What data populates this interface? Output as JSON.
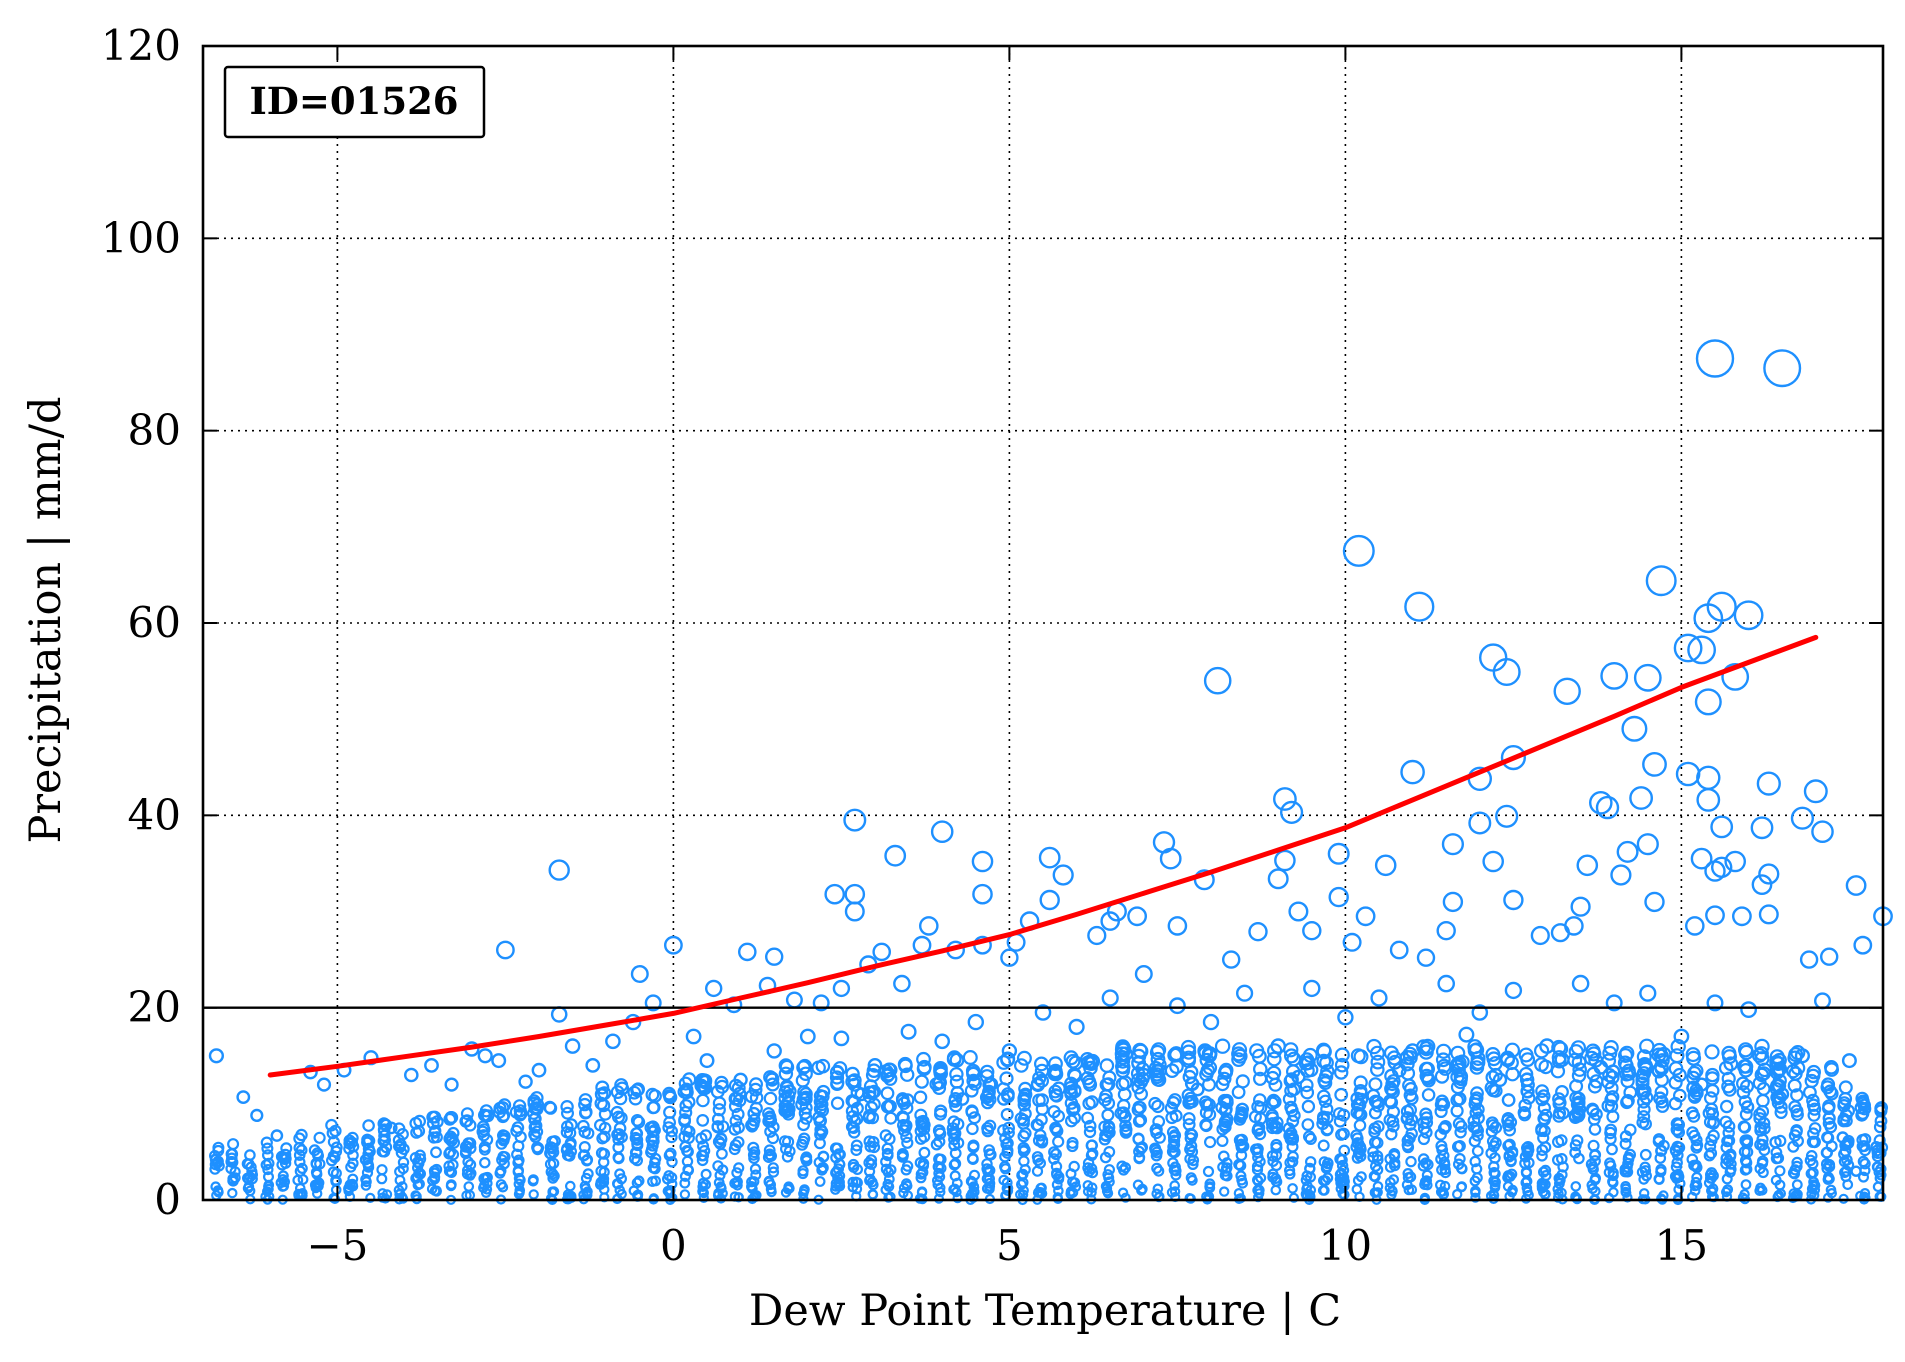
{
  "chart_data": {
    "type": "scatter",
    "title": "",
    "xlabel": "Dew Point Temperature | C",
    "ylabel": "Precipitation | mm/d",
    "xlim": [
      -7,
      18
    ],
    "ylim": [
      0,
      120
    ],
    "xticks": [
      -5,
      0,
      5,
      10,
      15
    ],
    "xtick_labels": [
      "−5",
      "0",
      "5",
      "10",
      "15"
    ],
    "yticks": [
      0,
      20,
      40,
      60,
      80,
      100,
      120
    ],
    "ytick_labels": [
      "0",
      "20",
      "40",
      "60",
      "80",
      "100",
      "120"
    ],
    "grid": true,
    "annotation": "ID=01526",
    "threshold_line": {
      "y": 20
    },
    "colors": {
      "points": "#1e90ff",
      "fit": "#ff0000",
      "threshold": "#000000"
    },
    "fit_curve": {
      "x": [
        -6,
        -5,
        -4,
        -3,
        -2,
        -1,
        0,
        1,
        2,
        3,
        4,
        5,
        6,
        7,
        8,
        9,
        10,
        11,
        12,
        13,
        14,
        15,
        16,
        17
      ],
      "y": [
        13.0,
        13.9,
        14.9,
        15.9,
        17.0,
        18.2,
        19.4,
        21.0,
        22.6,
        24.3,
        25.9,
        27.6,
        29.7,
        31.9,
        34.1,
        36.4,
        38.7,
        41.6,
        44.5,
        47.4,
        50.3,
        53.3,
        55.9,
        58.5
      ]
    },
    "points": [
      [
        -6.8,
        15
      ],
      [
        -6.4,
        10.7
      ],
      [
        -6.2,
        8.8
      ],
      [
        -5.9,
        6.7
      ],
      [
        -5.4,
        13.3
      ],
      [
        -5.2,
        12.0
      ],
      [
        -4.9,
        13.5
      ],
      [
        -4.5,
        14.8
      ],
      [
        -4.2,
        7.5
      ],
      [
        -3.9,
        13.0
      ],
      [
        -3.6,
        14.0
      ],
      [
        -3.3,
        12.0
      ],
      [
        -3.0,
        15.7
      ],
      [
        -2.8,
        15.0
      ],
      [
        -2.6,
        14.5
      ],
      [
        -2.5,
        26.0
      ],
      [
        -2.2,
        12.3
      ],
      [
        -2.0,
        13.5
      ],
      [
        -1.7,
        34.3
      ],
      [
        -1.7,
        19.3
      ],
      [
        -1.5,
        16.0
      ],
      [
        -1.2,
        14.0
      ],
      [
        -0.9,
        16.5
      ],
      [
        -0.6,
        18.5
      ],
      [
        -0.5,
        23.5
      ],
      [
        -0.3,
        20.5
      ],
      [
        0.0,
        26.5
      ],
      [
        0.3,
        17.0
      ],
      [
        0.6,
        22.0
      ],
      [
        0.9,
        20.3
      ],
      [
        1.1,
        25.8
      ],
      [
        1.4,
        22.3
      ],
      [
        1.5,
        25.3
      ],
      [
        1.8,
        20.8
      ],
      [
        2.2,
        20.5
      ],
      [
        2.4,
        31.8
      ],
      [
        2.5,
        22.0
      ],
      [
        2.7,
        39.5
      ],
      [
        2.7,
        31.8
      ],
      [
        2.7,
        30.0
      ],
      [
        2.9,
        24.5
      ],
      [
        3.1,
        25.8
      ],
      [
        3.3,
        35.8
      ],
      [
        3.4,
        22.5
      ],
      [
        3.7,
        26.5
      ],
      [
        3.8,
        28.5
      ],
      [
        4.0,
        38.3
      ],
      [
        4.2,
        26.0
      ],
      [
        4.6,
        35.2
      ],
      [
        4.6,
        31.8
      ],
      [
        4.6,
        26.5
      ],
      [
        5.0,
        25.2
      ],
      [
        5.1,
        26.8
      ],
      [
        5.3,
        29.0
      ],
      [
        5.6,
        35.6
      ],
      [
        5.6,
        31.2
      ],
      [
        5.8,
        33.8
      ],
      [
        6.3,
        27.5
      ],
      [
        6.5,
        29.0
      ],
      [
        6.6,
        30.0
      ],
      [
        6.9,
        29.5
      ],
      [
        7.0,
        23.5
      ],
      [
        7.3,
        37.2
      ],
      [
        7.4,
        35.5
      ],
      [
        7.5,
        28.5
      ],
      [
        7.9,
        33.3
      ],
      [
        8.1,
        54.0
      ],
      [
        8.3,
        25.0
      ],
      [
        8.7,
        27.9
      ],
      [
        9.0,
        33.4
      ],
      [
        9.1,
        35.3
      ],
      [
        9.1,
        41.7
      ],
      [
        9.2,
        40.3
      ],
      [
        9.3,
        30.0
      ],
      [
        9.5,
        28.0
      ],
      [
        9.9,
        36.0
      ],
      [
        9.9,
        31.5
      ],
      [
        10.1,
        26.8
      ],
      [
        10.2,
        67.5
      ],
      [
        10.3,
        29.5
      ],
      [
        10.6,
        34.8
      ],
      [
        10.8,
        26.0
      ],
      [
        11.0,
        44.5
      ],
      [
        11.1,
        61.7
      ],
      [
        11.2,
        25.2
      ],
      [
        11.5,
        28.0
      ],
      [
        11.6,
        37.0
      ],
      [
        11.6,
        31.0
      ],
      [
        12.0,
        43.8
      ],
      [
        12.0,
        39.2
      ],
      [
        12.2,
        56.4
      ],
      [
        12.2,
        35.2
      ],
      [
        12.4,
        54.9
      ],
      [
        12.4,
        39.9
      ],
      [
        12.5,
        46.0
      ],
      [
        12.5,
        31.2
      ],
      [
        12.9,
        27.5
      ],
      [
        13.2,
        27.8
      ],
      [
        13.3,
        52.9
      ],
      [
        13.4,
        28.5
      ],
      [
        13.5,
        30.5
      ],
      [
        13.6,
        34.8
      ],
      [
        13.8,
        41.3
      ],
      [
        13.9,
        40.8
      ],
      [
        14.0,
        54.5
      ],
      [
        14.1,
        33.8
      ],
      [
        14.2,
        36.2
      ],
      [
        14.3,
        49.0
      ],
      [
        14.4,
        41.8
      ],
      [
        14.5,
        54.3
      ],
      [
        14.5,
        37.0
      ],
      [
        14.6,
        45.3
      ],
      [
        14.6,
        31.0
      ],
      [
        14.7,
        64.4
      ],
      [
        15.1,
        57.4
      ],
      [
        15.1,
        44.3
      ],
      [
        15.2,
        28.5
      ],
      [
        15.3,
        57.2
      ],
      [
        15.3,
        35.5
      ],
      [
        15.4,
        60.5
      ],
      [
        15.4,
        51.8
      ],
      [
        15.4,
        43.9
      ],
      [
        15.4,
        41.6
      ],
      [
        15.5,
        87.5
      ],
      [
        15.5,
        34.2
      ],
      [
        15.5,
        29.6
      ],
      [
        15.6,
        61.7
      ],
      [
        15.6,
        38.8
      ],
      [
        15.6,
        34.6
      ],
      [
        15.8,
        54.4
      ],
      [
        15.8,
        35.2
      ],
      [
        15.9,
        29.5
      ],
      [
        16.0,
        60.8
      ],
      [
        16.2,
        32.8
      ],
      [
        16.2,
        38.7
      ],
      [
        16.3,
        43.3
      ],
      [
        16.3,
        33.9
      ],
      [
        16.3,
        29.7
      ],
      [
        16.5,
        86.5
      ],
      [
        16.8,
        39.7
      ],
      [
        17.0,
        42.5
      ],
      [
        17.1,
        38.3
      ],
      [
        17.1,
        20.7
      ],
      [
        17.2,
        25.3
      ],
      [
        17.6,
        32.7
      ],
      [
        17.7,
        26.5
      ],
      [
        18.0,
        29.5
      ],
      [
        16.9,
        25.0
      ],
      [
        17.5,
        14.5
      ],
      [
        17.7,
        9.0
      ],
      [
        17.9,
        5.5
      ],
      [
        17.6,
        3.0
      ],
      [
        1.0,
        12.5
      ],
      [
        3.0,
        14.0
      ],
      [
        5.0,
        15.5
      ],
      [
        7.0,
        13.0
      ],
      [
        9.0,
        16.0
      ],
      [
        11.0,
        15.5
      ],
      [
        13.0,
        16.0
      ],
      [
        15.0,
        17.0
      ],
      [
        2.0,
        17.0
      ],
      [
        4.0,
        16.5
      ],
      [
        6.0,
        18.0
      ],
      [
        8.0,
        18.5
      ],
      [
        10.0,
        19.0
      ],
      [
        12.0,
        19.5
      ],
      [
        14.0,
        20.5
      ],
      [
        16.0,
        19.8
      ],
      [
        0.5,
        14.5
      ],
      [
        1.5,
        15.5
      ],
      [
        2.5,
        16.8
      ],
      [
        3.5,
        17.5
      ],
      [
        4.5,
        18.5
      ],
      [
        5.5,
        19.5
      ],
      [
        6.5,
        21.0
      ],
      [
        7.5,
        20.2
      ],
      [
        8.5,
        21.5
      ],
      [
        9.5,
        22.0
      ],
      [
        10.5,
        21.0
      ],
      [
        11.5,
        22.5
      ],
      [
        12.5,
        21.8
      ],
      [
        13.5,
        22.5
      ],
      [
        14.5,
        21.5
      ],
      [
        15.5,
        20.5
      ],
      [
        1.2,
        9.0
      ],
      [
        2.8,
        11.0
      ],
      [
        4.3,
        10.5
      ],
      [
        6.2,
        12.0
      ],
      [
        7.8,
        11.5
      ],
      [
        9.3,
        12.8
      ],
      [
        10.8,
        13.5
      ],
      [
        12.3,
        12.5
      ],
      [
        13.8,
        13.8
      ],
      [
        15.3,
        12.0
      ],
      [
        16.5,
        11.0
      ],
      [
        17.2,
        8.5
      ],
      [
        16.8,
        15.0
      ],
      [
        16.4,
        6.0
      ],
      [
        17.4,
        6.5
      ],
      [
        11.8,
        17.2
      ]
    ],
    "column_points": {
      "x_start": -6.8,
      "x_end": 18.0,
      "x_step": 0.25,
      "max_y": [
        6,
        6,
        6,
        6,
        7,
        7,
        7,
        8,
        8,
        8,
        8,
        9,
        9,
        9,
        9,
        10,
        10,
        10,
        10,
        11,
        11,
        11,
        11,
        12,
        12,
        12,
        12,
        12,
        13,
        13,
        13,
        13,
        13,
        13,
        14,
        14,
        14,
        14,
        14,
        14,
        14,
        15,
        15,
        15,
        15,
        15,
        15,
        15,
        15,
        15,
        15,
        15,
        15,
        15,
        16,
        16,
        16,
        16,
        16,
        16,
        16,
        16,
        16,
        16,
        16,
        16,
        16,
        16,
        16,
        16,
        16,
        16,
        16,
        16,
        16,
        16,
        16,
        16,
        16,
        16,
        16,
        16,
        16,
        16,
        16,
        16,
        16,
        16,
        16,
        16,
        16,
        16,
        16,
        16,
        16,
        15,
        14,
        12,
        11,
        10
      ]
    }
  }
}
